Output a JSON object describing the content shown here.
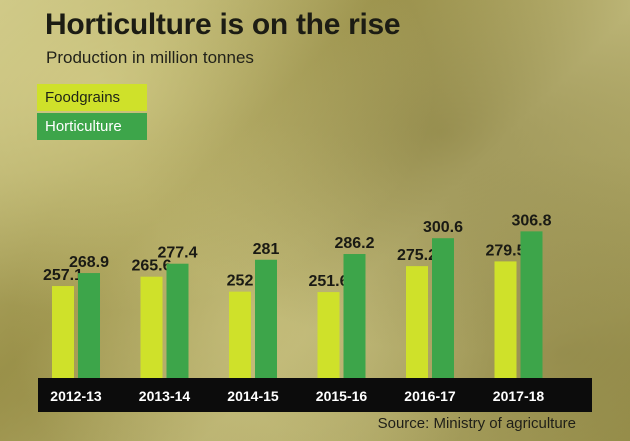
{
  "title": "Horticulture is on the rise",
  "subtitle": "Production in million tonnes",
  "legend": [
    "Foodgrains",
    "Horticulture"
  ],
  "source": "Source: Ministry of agriculture",
  "colors": {
    "foodgrains": "#cfe12a",
    "horticulture": "#3da54a",
    "axis": "#0c0c0c"
  },
  "chart_data": {
    "type": "bar",
    "categories": [
      "2012-13",
      "2013-14",
      "2014-15",
      "2015-16",
      "2016-17",
      "2017-18"
    ],
    "series": [
      {
        "name": "Foodgrains",
        "values": [
          257.1,
          265.6,
          252,
          251.6,
          275.2,
          279.5
        ]
      },
      {
        "name": "Horticulture",
        "values": [
          268.9,
          277.4,
          281,
          286.2,
          300.6,
          306.8
        ]
      }
    ],
    "value_labels": [
      [
        "257.1",
        "265.6",
        "252",
        "251.6",
        "275.2",
        "279.5"
      ],
      [
        "268.9",
        "277.4",
        "281",
        "286.2",
        "300.6",
        "306.8"
      ]
    ],
    "title": "Horticulture is on the rise",
    "subtitle": "Production in million tonnes",
    "legend_position": "top-left"
  }
}
